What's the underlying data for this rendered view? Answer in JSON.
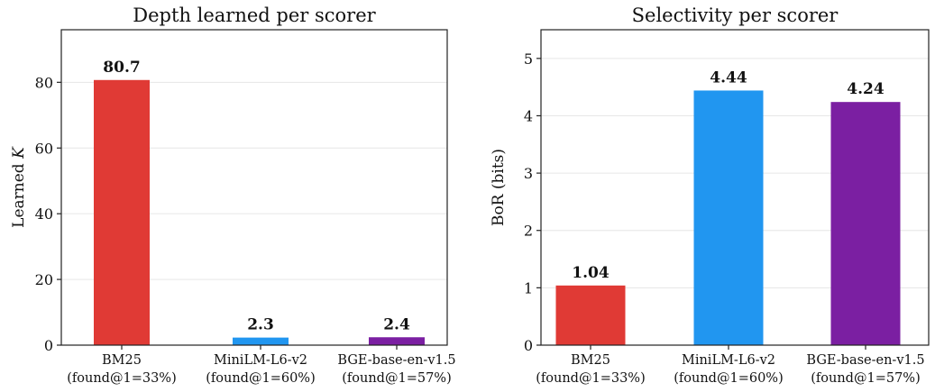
{
  "chart_data": [
    {
      "type": "bar",
      "title": "Depth learned per scorer",
      "ylabel": "Learned K",
      "ylabel_prefix": "Learned ",
      "ylabel_symbol": "K",
      "categories": [
        [
          "BM25",
          "(found@1=33%)"
        ],
        [
          "MiniLM-L6-v2",
          "(found@1=60%)"
        ],
        [
          "BGE-base-en-v1.5",
          "(found@1=57%)"
        ]
      ],
      "values": [
        80.7,
        2.3,
        2.4
      ],
      "value_labels": [
        "80.7",
        "2.3",
        "2.4"
      ],
      "colors": [
        "#e03a35",
        "#2196f0",
        "#7b1fa2"
      ],
      "ylim": [
        0,
        96
      ],
      "yticks": [
        0,
        20,
        40,
        60,
        80
      ],
      "grid": true
    },
    {
      "type": "bar",
      "title": "Selectivity per scorer",
      "ylabel": "BoR (bits)",
      "categories": [
        [
          "BM25",
          "(found@1=33%)"
        ],
        [
          "MiniLM-L6-v2",
          "(found@1=60%)"
        ],
        [
          "BGE-base-en-v1.5",
          "(found@1=57%)"
        ]
      ],
      "values": [
        1.04,
        4.44,
        4.24
      ],
      "value_labels": [
        "1.04",
        "4.44",
        "4.24"
      ],
      "colors": [
        "#e03a35",
        "#2196f0",
        "#7b1fa2"
      ],
      "ylim": [
        0,
        5.5
      ],
      "yticks": [
        0,
        1,
        2,
        3,
        4,
        5
      ],
      "grid": true
    }
  ]
}
